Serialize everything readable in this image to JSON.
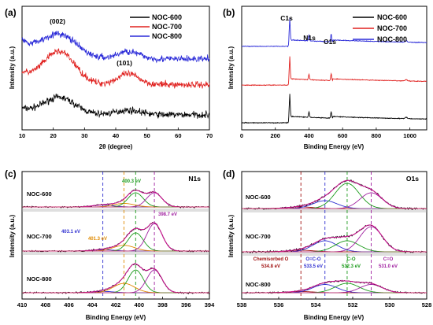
{
  "chart_data": [
    {
      "type": "line",
      "panel_label": "(a)",
      "xlabel": "2θ (degree)",
      "ylabel": "Intensity (a.u.)",
      "xlim": [
        10,
        70
      ],
      "xticks": [
        10,
        20,
        30,
        40,
        50,
        60,
        70
      ],
      "annotations": [
        {
          "text": "(002)",
          "x": 22,
          "y": 7.3
        },
        {
          "text": "(101)",
          "x": 44,
          "y": 4.9
        }
      ],
      "legend": {
        "position": "top-right"
      },
      "series": [
        {
          "name": "NOC-600",
          "color": "#000000",
          "baseline": 1.0,
          "peaks": [
            [
              22,
              1.1,
              5
            ],
            [
              44,
              0.3,
              4
            ]
          ]
        },
        {
          "name": "NOC-700",
          "color": "#e0211f",
          "baseline": 3.0,
          "peaks": [
            [
              22,
              2.1,
              5
            ],
            [
              44,
              0.7,
              3.5
            ]
          ]
        },
        {
          "name": "NOC-800",
          "color": "#2a2ad8",
          "baseline": 4.7,
          "peaks": [
            [
              22,
              1.5,
              5.5
            ],
            [
              44,
              0.5,
              3.5
            ]
          ]
        }
      ]
    },
    {
      "type": "line",
      "panel_label": "(b)",
      "xlabel": "Binding Energy (eV)",
      "ylabel": "Intensity (a.u.)",
      "xlim": [
        0,
        1100
      ],
      "xticks": [
        0,
        200,
        400,
        600,
        800,
        1000
      ],
      "annotations": [
        {
          "text": "C1s",
          "x": 285,
          "y": 9.6
        },
        {
          "text": "N1s",
          "x": 400,
          "y": 8.7
        },
        {
          "text": "O1s",
          "x": 532,
          "y": 8.5
        }
      ],
      "legend": {
        "position": "top-right"
      },
      "series": [
        {
          "name": "NOC-600",
          "color": "#000000",
          "baseline": 0.6
        },
        {
          "name": "NOC-700",
          "color": "#e0211f",
          "baseline": 3.8
        },
        {
          "name": "NOC-800",
          "color": "#2a2ad8",
          "baseline": 7.1
        }
      ]
    },
    {
      "type": "line",
      "panel_label": "(c)",
      "title": "N1s",
      "xlabel": "Binding Energy (eV)",
      "ylabel": "Intensity (a.u.)",
      "xlim": [
        410,
        394
      ],
      "xticks": [
        410,
        408,
        406,
        404,
        402,
        400,
        398,
        396,
        394
      ],
      "peak_labels": [
        {
          "text": "403.1 eV",
          "x": 403.1,
          "color": "#2f2fd0"
        },
        {
          "text": "401.3 eV",
          "x": 401.3,
          "color": "#e08a00"
        },
        {
          "text": "400.3 eV",
          "x": 400.3,
          "color": "#1a9a1a"
        },
        {
          "text": "398.7 eV",
          "x": 398.7,
          "color": "#a020a0"
        }
      ],
      "samples": [
        "NOC-600",
        "NOC-700",
        "NOC-800"
      ]
    },
    {
      "type": "line",
      "panel_label": "(d)",
      "title": "O1s",
      "xlabel": "Binding Energy (eV)",
      "ylabel": "Intensity (a.u.)",
      "xlim": [
        538,
        528
      ],
      "xticks": [
        538,
        536,
        534,
        532,
        530,
        528
      ],
      "peak_labels": [
        {
          "text": "Chemisorbed O",
          "sub": "534.8 eV",
          "x": 534.8,
          "color": "#a01010"
        },
        {
          "text": "O=C-O",
          "sub": "533.5 eV",
          "x": 533.5,
          "color": "#2f2fd0"
        },
        {
          "text": "C-O",
          "sub": "532.3 eV",
          "x": 532.3,
          "color": "#1a9a1a"
        },
        {
          "text": "C=O",
          "sub": "531.0 eV",
          "x": 531.0,
          "color": "#a020a0"
        }
      ],
      "samples": [
        "NOC-600",
        "NOC-700",
        "NOC-800"
      ]
    }
  ]
}
